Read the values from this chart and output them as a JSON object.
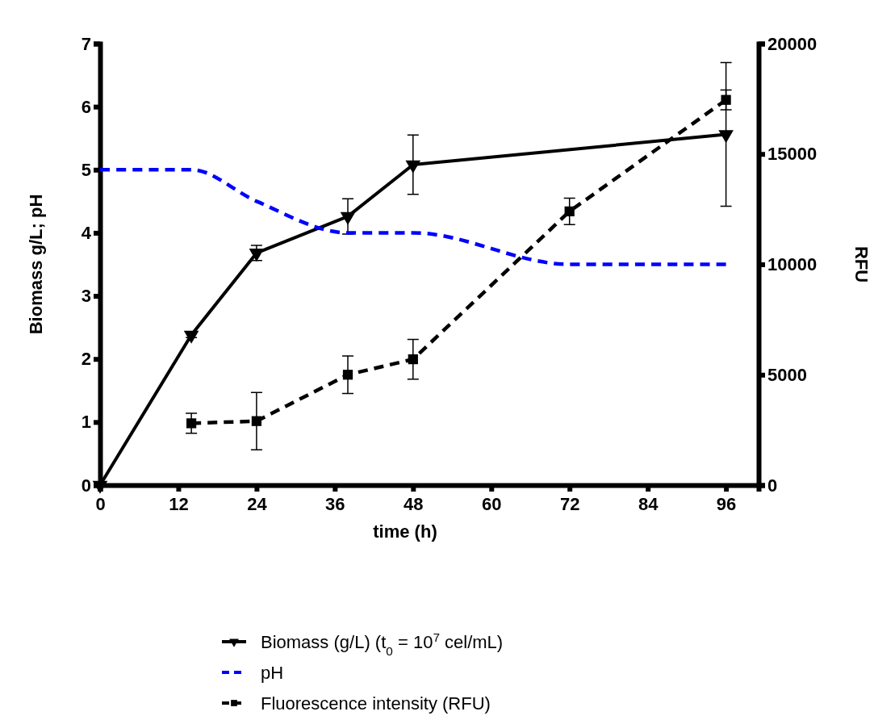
{
  "chart_data": {
    "type": "line",
    "xlabel": "time (h)",
    "ylabel": "Biomass g/L; pH",
    "y2label": "RFU",
    "xlim": [
      0,
      101
    ],
    "xticks": [
      0,
      12,
      24,
      36,
      48,
      60,
      72,
      84,
      96
    ],
    "ylim": [
      0,
      7
    ],
    "yticks": [
      0,
      1,
      2,
      3,
      4,
      5,
      6,
      7
    ],
    "y2lim": [
      0,
      20000
    ],
    "y2ticks": [
      0,
      5000,
      10000,
      15000,
      20000
    ],
    "grid": false,
    "legend": "bottom",
    "series": [
      {
        "name": "Biomass (g/L) (t$_{0}$ = 10$^{7}$ cel/mL)",
        "color": "#000000",
        "marker": "triangle",
        "line_style": "solid",
        "x": [
          0,
          14,
          24,
          38,
          48,
          96
        ],
        "values": [
          0,
          2.38,
          3.68,
          4.26,
          5.08,
          5.56
        ],
        "errors": [
          null,
          0.04,
          0.12,
          0.28,
          0.47,
          1.14
        ]
      },
      {
        "name": "pH",
        "color": "#0000ff",
        "marker": "none",
        "line_style": "dashed",
        "x": [
          0,
          14,
          24,
          38,
          48,
          72,
          96
        ],
        "values": [
          5,
          5,
          4.5,
          4,
          4,
          3.5,
          3.5
        ]
      },
      {
        "name": "Fluorescence intensity (RFU)",
        "color": "#000000",
        "marker": "square",
        "line_style": "dashed",
        "axis": "y2",
        "x": [
          14,
          24,
          38,
          48,
          72,
          96
        ],
        "values": [
          2800,
          2900,
          5000,
          5700,
          12400,
          17450
        ],
        "errors": [
          450,
          1300,
          850,
          900,
          600,
          450
        ]
      }
    ]
  }
}
